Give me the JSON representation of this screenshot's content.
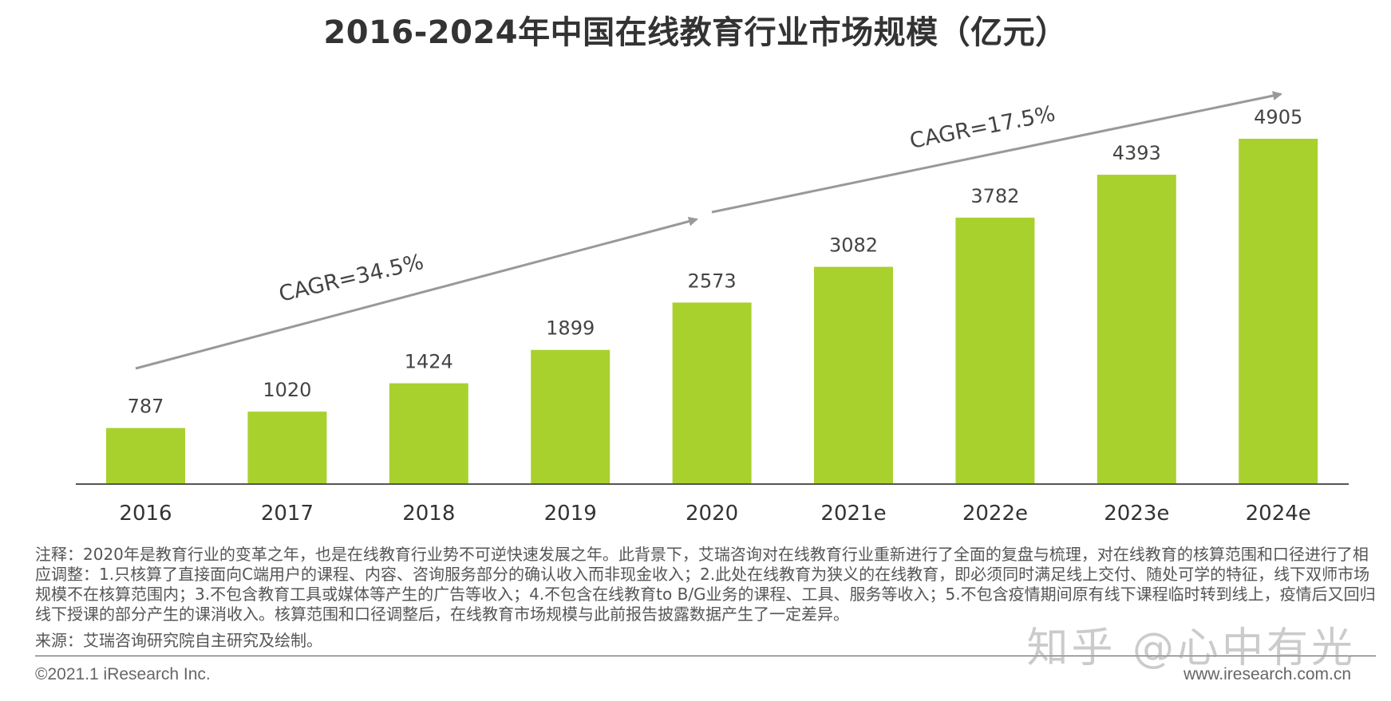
{
  "chart_data": {
    "type": "bar",
    "title": "2016-2024年中国在线教育行业市场规模（亿元）",
    "categories": [
      "2016",
      "2017",
      "2018",
      "2019",
      "2020",
      "2021e",
      "2022e",
      "2023e",
      "2024e"
    ],
    "values": [
      787,
      1020,
      1424,
      1899,
      2573,
      3082,
      3782,
      4393,
      4905
    ],
    "ylim": [
      0,
      4905
    ],
    "bar_color": "#a8d12e",
    "annotations": [
      {
        "text": "CAGR=34.5%",
        "range": [
          "2016",
          "2020"
        ]
      },
      {
        "text": "CAGR=17.5%",
        "range": [
          "2020",
          "2024e"
        ]
      }
    ],
    "grid": false
  },
  "notes": "注释：2020年是教育行业的变革之年，也是在线教育行业势不可逆快速发展之年。此背景下，艾瑞咨询对在线教育行业重新进行了全面的复盘与梳理，对在线教育的核算范围和口径进行了相应调整：1.只核算了直接面向C端用户的课程、内容、咨询服务部分的确认收入而非现金收入；2.此处在线教育为狭义的在线教育，即必须同时满足线上交付、随处可学的特征，线下双师市场规模不在核算范围内；3.不包含教育工具或媒体等产生的广告等收入；4.不包含在线教育to B/G业务的课程、工具、服务等收入；5.不包含疫情期间原有线下课程临时转到线上，疫情后又回归线下授课的部分产生的课消收入。核算范围和口径调整后，在线教育市场规模与此前报告披露数据产生了一定差异。",
  "source": "来源：艾瑞咨询研究院自主研究及绘制。",
  "copyright": "©2021.1 iResearch Inc.",
  "website": "www.iresearch.com.cn",
  "watermark": "知乎 @心中有光"
}
